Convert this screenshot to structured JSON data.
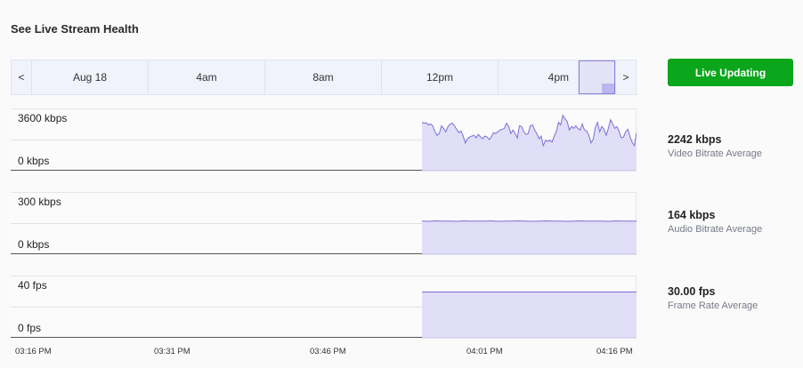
{
  "title": "See Live Stream Health",
  "navigator": {
    "prev_label": "<",
    "next_label": ">",
    "cells": [
      "Aug 18",
      "4am",
      "8am",
      "12pm",
      "4pm"
    ]
  },
  "live_button": {
    "label": "Live Updating",
    "color": "#0ca61c"
  },
  "colors": {
    "line": "#7b6fd6",
    "fill": "#dedaf6",
    "axis": "#555555",
    "grid": "#e2e2e6"
  },
  "x_axis": {
    "ticks": [
      "03:16 PM",
      "03:31 PM",
      "03:46 PM",
      "04:01 PM",
      "04:16 PM"
    ]
  },
  "charts": {
    "video": {
      "y_max_label": "3600 kbps",
      "y_min_label": "0 kbps",
      "avg_value": "2242 kbps",
      "avg_label": "Video Bitrate Average"
    },
    "audio": {
      "y_max_label": "300 kbps",
      "y_min_label": "0 kbps",
      "avg_value": "164 kbps",
      "avg_label": "Audio Bitrate Average"
    },
    "fps": {
      "y_max_label": "40 fps",
      "y_min_label": "0 fps",
      "avg_value": "30.00 fps",
      "avg_label": "Frame Rate Average"
    }
  },
  "chart_data": [
    {
      "type": "area",
      "title": "Video Bitrate",
      "ylabel": "kbps",
      "ylim": [
        0,
        3600
      ],
      "x_range": [
        "03:16 PM",
        "04:16 PM"
      ],
      "data_start": "≈03:54 PM",
      "series": [
        {
          "name": "Video Bitrate",
          "values": [
            2850,
            2800,
            2820,
            2700,
            2750,
            2650,
            2300,
            2100,
            2200,
            2650,
            2500,
            2300,
            2600,
            2750,
            2800,
            2650,
            2450,
            2250,
            2350,
            2050,
            1650,
            1900,
            2000,
            2050,
            2100,
            1950,
            2150,
            2000,
            1900,
            2050,
            2000,
            1850,
            2000,
            2250,
            2200,
            2300,
            2400,
            2450,
            2500,
            2800,
            2600,
            2200,
            2400,
            2200,
            1950,
            2650,
            2600,
            2300,
            2150,
            2200,
            2650,
            2700,
            2400,
            2200,
            1900,
            2050,
            1500,
            1800,
            1750,
            1800,
            1700,
            2050,
            2300,
            2850,
            2700,
            3250,
            3050,
            2900,
            2400,
            2600,
            2500,
            2650,
            2500,
            2400,
            2750,
            2400,
            2350,
            2100,
            1650,
            1850,
            2550,
            2850,
            2300,
            2600,
            2450,
            2100,
            2500,
            3000,
            2750,
            2500,
            2600,
            2300,
            1950,
            2000,
            2300,
            2450,
            2000,
            1700,
            1500,
            2250
          ]
        }
      ],
      "average": 2242
    },
    {
      "type": "area",
      "title": "Audio Bitrate",
      "ylabel": "kbps",
      "ylim": [
        0,
        300
      ],
      "series": [
        {
          "name": "Audio Bitrate",
          "values": [
            164,
            163,
            165,
            164,
            164,
            163,
            165,
            164,
            164,
            164,
            165,
            163,
            164,
            164,
            165,
            164,
            163,
            164,
            165,
            164,
            164,
            163,
            164,
            165,
            164,
            164,
            164,
            163,
            165,
            164,
            164,
            164
          ]
        }
      ],
      "average": 164
    },
    {
      "type": "area",
      "title": "Frame Rate",
      "ylabel": "fps",
      "ylim": [
        0,
        40
      ],
      "series": [
        {
          "name": "Frame Rate",
          "values": [
            30,
            30,
            30,
            30,
            30,
            30,
            30,
            30,
            30,
            30,
            30,
            30,
            30,
            30,
            30,
            30
          ]
        }
      ],
      "average": 30.0
    }
  ]
}
